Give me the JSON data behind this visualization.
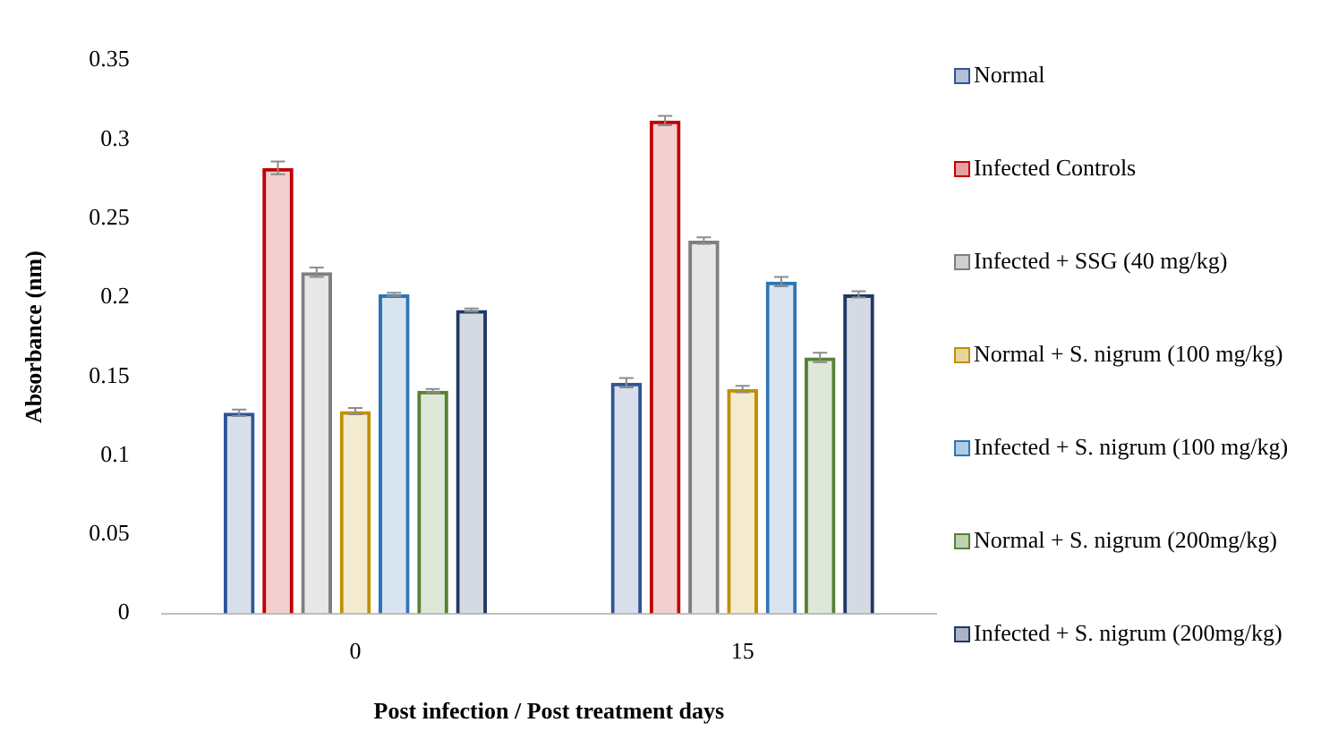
{
  "chart_data": {
    "type": "bar",
    "xlabel": "Post infection / Post treatment days",
    "ylabel": "Absorbance (nm)",
    "categories": [
      "0",
      "15"
    ],
    "ylim": [
      0,
      0.35
    ],
    "yticks": [
      0,
      0.05,
      0.1,
      0.15,
      0.2,
      0.25,
      0.3,
      0.35
    ],
    "grid": false,
    "legend": "right",
    "series": [
      {
        "name": "Normal",
        "color": "#2f5597",
        "values": [
          0.127,
          0.146
        ],
        "errors": [
          0.002,
          0.003
        ]
      },
      {
        "name": "Infected Controls",
        "color": "#c00000",
        "values": [
          0.282,
          0.312
        ],
        "errors": [
          0.004,
          0.003
        ]
      },
      {
        "name": "Infected + SSG (40 mg/kg)",
        "color": "#7f7f7f",
        "values": [
          0.216,
          0.236
        ],
        "errors": [
          0.003,
          0.002
        ]
      },
      {
        "name": "Normal + S. nigrum (100 mg/kg)",
        "color": "#bf9000",
        "values": [
          0.128,
          0.142
        ],
        "errors": [
          0.002,
          0.002
        ]
      },
      {
        "name": "Infected + S. nigrum (100 mg/kg)",
        "color": "#2e75b6",
        "values": [
          0.202,
          0.21
        ],
        "errors": [
          0.001,
          0.003
        ]
      },
      {
        "name": "Normal + S. nigrum (200mg/kg)",
        "color": "#548235",
        "values": [
          0.141,
          0.162
        ],
        "errors": [
          0.001,
          0.003
        ]
      },
      {
        "name": "Infected + S. nigrum (200mg/kg)",
        "color": "#1f3864",
        "values": [
          0.192,
          0.202
        ],
        "errors": [
          0.001,
          0.002
        ]
      }
    ]
  }
}
